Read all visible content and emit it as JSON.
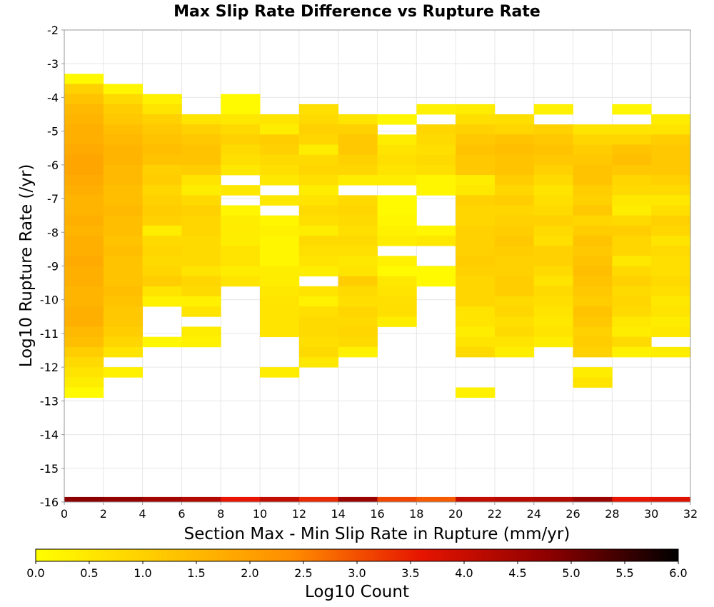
{
  "chart_data": {
    "type": "heatmap",
    "title": "Max Slip Rate Difference vs Rupture Rate",
    "xlabel": "Section Max - Min Slip Rate in Rupture (mm/yr)",
    "ylabel": "Log10 Rupture Rate (/yr)",
    "xlim": [
      0,
      32
    ],
    "ylim": [
      -16,
      -2
    ],
    "x_ticks": [
      "0",
      "2",
      "4",
      "6",
      "8",
      "10",
      "12",
      "14",
      "16",
      "18",
      "20",
      "22",
      "24",
      "26",
      "28",
      "30",
      "32"
    ],
    "y_ticks": [
      "-2",
      "-3",
      "-4",
      "-5",
      "-6",
      "-7",
      "-8",
      "-9",
      "-10",
      "-11",
      "-12",
      "-13",
      "-14",
      "-15",
      "-16"
    ],
    "x_bin_width": 2,
    "y_bin_height": 0.3,
    "grid": true,
    "colorbar": {
      "label": "Log10 Count",
      "range": [
        0,
        6
      ],
      "ticks": [
        "0.0",
        "0.5",
        "1.0",
        "1.5",
        "2.0",
        "2.5",
        "3.0",
        "3.5",
        "4.0",
        "4.5",
        "5.0",
        "5.5",
        "6.0"
      ],
      "colors": [
        "#ffff00",
        "#ffc800",
        "#ff8c00",
        "#e61400",
        "#8c0000",
        "#000000"
      ]
    },
    "columns": [
      {
        "x_start": 0,
        "y_top": -3.3,
        "values": [
          0.1,
          1.0,
          1.3,
          1.5,
          1.6,
          1.7,
          1.7,
          1.8,
          1.9,
          1.9,
          1.8,
          1.7,
          1.6,
          1.6,
          1.7,
          1.6,
          1.7,
          1.7,
          1.8,
          1.7,
          1.7,
          1.6,
          1.6,
          1.7,
          1.7,
          1.5,
          1.4,
          1.1,
          0.8,
          0.6,
          0.4,
          0.1
        ]
      },
      {
        "x_start": 2,
        "y_top": -3.6,
        "values": [
          0.2,
          0.8,
          1.1,
          1.2,
          1.4,
          1.5,
          1.6,
          1.6,
          1.5,
          1.5,
          1.4,
          1.4,
          1.5,
          1.4,
          1.4,
          1.3,
          1.4,
          1.3,
          1.3,
          1.3,
          1.4,
          1.3,
          1.2,
          1.2,
          1.1,
          0.9,
          0.6,
          null,
          0.3
        ]
      },
      {
        "x_start": 4,
        "y_top": -3.9,
        "values": [
          0.3,
          0.6,
          1.0,
          1.2,
          1.3,
          1.4,
          1.3,
          1.0,
          1.1,
          0.9,
          1.0,
          1.1,
          1.0,
          0.4,
          0.8,
          0.9,
          0.8,
          0.9,
          1.1,
          0.6,
          0.3,
          null,
          null,
          null,
          0.2
        ]
      },
      {
        "x_start": 6,
        "y_top": -4.5,
        "values": [
          0.6,
          1.0,
          1.2,
          1.3,
          1.3,
          1.1,
          0.6,
          0.4,
          0.8,
          1.0,
          0.9,
          0.9,
          0.8,
          0.8,
          0.8,
          0.6,
          0.9,
          0.8,
          0.3,
          0.6,
          null,
          0.4,
          0.3
        ]
      },
      {
        "x_start": 8,
        "y_top": -3.9,
        "values": [
          0.1,
          0.1,
          0.5,
          0.8,
          1.0,
          0.8,
          0.7,
          0.5,
          null,
          0.5,
          null,
          0.2,
          0.4,
          0.4,
          0.4,
          0.6,
          0.6,
          0.4,
          0.6
        ]
      },
      {
        "x_start": 10,
        "y_top": -4.5,
        "values": [
          0.6,
          0.4,
          1.1,
          1.0,
          0.8,
          0.7,
          0.5,
          null,
          0.5,
          null,
          0.2,
          0.3,
          0.2,
          0.2,
          0.2,
          0.4,
          0.4,
          0.5,
          0.6,
          0.6,
          0.6,
          0.6,
          null,
          null,
          null,
          0.4
        ]
      },
      {
        "x_start": 12,
        "y_top": -4.2,
        "values": [
          0.7,
          0.8,
          1.0,
          0.9,
          0.4,
          0.8,
          0.9,
          0.7,
          0.4,
          0.6,
          0.8,
          0.7,
          0.4,
          0.8,
          0.7,
          0.6,
          0.4,
          null,
          0.6,
          0.3,
          0.7,
          0.8,
          0.8,
          0.7,
          0.8,
          0.5
        ]
      },
      {
        "x_start": 14,
        "y_top": -4.5,
        "values": [
          0.6,
          1.0,
          1.2,
          1.2,
          1.0,
          0.9,
          0.4,
          null,
          0.8,
          0.9,
          0.8,
          0.7,
          0.8,
          0.7,
          0.5,
          0.6,
          1.1,
          0.8,
          0.7,
          0.9,
          0.8,
          0.9,
          0.8,
          0.3
        ]
      },
      {
        "x_start": 16,
        "y_top": -4.5,
        "values": [
          0.2,
          null,
          0.4,
          0.6,
          0.7,
          0.6,
          0.4,
          null,
          0.1,
          0.1,
          0.2,
          0.3,
          0.4,
          null,
          0.3,
          0.1,
          0.5,
          0.6,
          0.7,
          0.7,
          0.4
        ]
      },
      {
        "x_start": 18,
        "y_top": -4.2,
        "values": [
          0.3,
          null,
          0.9,
          0.8,
          0.7,
          0.8,
          0.7,
          0.2,
          0.2,
          null,
          null,
          null,
          0.2,
          0.5,
          null,
          null,
          0.1,
          0.1
        ]
      },
      {
        "x_start": 20,
        "y_top": -4.2,
        "values": [
          0.4,
          0.7,
          1.0,
          1.2,
          1.3,
          1.2,
          1.2,
          0.4,
          0.5,
          1.0,
          0.9,
          0.9,
          1.0,
          1.0,
          1.0,
          1.1,
          1.0,
          0.9,
          0.9,
          0.9,
          0.6,
          0.6,
          0.4,
          0.6,
          0.8,
          null,
          null,
          null,
          0.3
        ]
      },
      {
        "x_start": 22,
        "y_top": -4.5,
        "values": [
          0.7,
          0.9,
          1.3,
          1.4,
          1.3,
          1.3,
          1.1,
          0.9,
          1.1,
          0.9,
          1.0,
          1.1,
          1.2,
          1.1,
          1.0,
          1.0,
          1.1,
          1.1,
          0.8,
          0.9,
          0.7,
          0.8,
          0.6,
          0.4
        ]
      },
      {
        "x_start": 24,
        "y_top": -4.2,
        "values": [
          0.3,
          null,
          1.0,
          1.2,
          1.3,
          1.2,
          1.0,
          0.8,
          0.6,
          0.7,
          0.8,
          1.0,
          0.8,
          0.7,
          1.0,
          1.0,
          0.8,
          0.6,
          0.8,
          0.7,
          0.6,
          0.5,
          0.6,
          0.4
        ]
      },
      {
        "x_start": 26,
        "y_top": -4.8,
        "values": [
          0.6,
          0.9,
          1.1,
          1.2,
          1.3,
          1.3,
          1.1,
          1.0,
          1.2,
          0.9,
          1.1,
          1.3,
          1.2,
          1.3,
          1.4,
          1.3,
          1.2,
          1.1,
          1.3,
          1.2,
          1.0,
          1.1,
          1.0,
          null,
          0.4,
          0.6
        ]
      },
      {
        "x_start": 28,
        "y_top": -4.2,
        "values": [
          0.2,
          null,
          0.6,
          0.9,
          1.3,
          1.4,
          1.2,
          0.9,
          0.8,
          0.5,
          0.4,
          0.8,
          1.1,
          0.9,
          0.9,
          0.5,
          0.8,
          1.0,
          0.8,
          0.9,
          0.8,
          0.5,
          0.4,
          0.8,
          0.3
        ]
      },
      {
        "x_start": 30,
        "y_top": -4.5,
        "values": [
          0.4,
          0.6,
          1.1,
          1.2,
          1.2,
          1.2,
          1.0,
          0.8,
          0.5,
          0.7,
          1.0,
          0.9,
          0.6,
          0.8,
          0.7,
          0.7,
          0.8,
          0.7,
          0.5,
          0.6,
          0.4,
          0.5,
          null,
          0.4
        ]
      }
    ],
    "floor_row": {
      "y": -16,
      "values": [
        4.8,
        4.7,
        4.5,
        4.3,
        3.6,
        4.1,
        3.4,
        4.6,
        3.1,
        2.9,
        4.1,
        4.2,
        4.3,
        4.6,
        3.6,
        3.7
      ]
    }
  }
}
